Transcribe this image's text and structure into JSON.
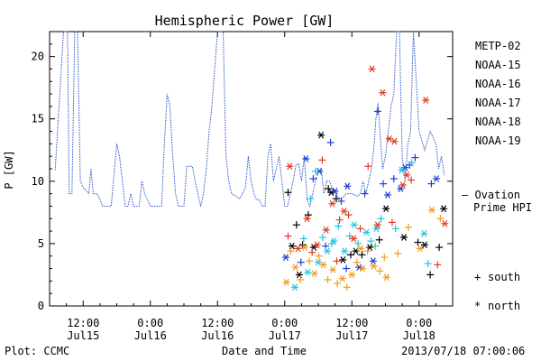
{
  "chart_data": {
    "type": "scatter",
    "title": "Hemispheric Power [GW]",
    "xlabel": "Date and Time",
    "ylabel": "P [GW]",
    "ylim": [
      0,
      22
    ],
    "xlim_hours": [
      -42,
      30
    ],
    "yticks": [
      0,
      5,
      10,
      15,
      20
    ],
    "xticks": [
      {
        "h": -36,
        "time": "12:00",
        "date": "Jul15"
      },
      {
        "h": -24,
        "time": "0:00",
        "date": "Jul16"
      },
      {
        "h": -12,
        "time": "12:00",
        "date": "Jul16"
      },
      {
        "h": 0,
        "time": "0:00",
        "date": "Jul17"
      },
      {
        "h": 12,
        "time": "12:00",
        "date": "Jul17"
      },
      {
        "h": 24,
        "time": "0:00",
        "date": "Jul18"
      }
    ],
    "footer_left": "Plot: CCMC",
    "footer_right": "2013/07/18 07:00:06",
    "legend_items": [
      {
        "name": "METP-02",
        "color": "#000000"
      },
      {
        "name": "NOAA-15",
        "color": "#1f3fd8"
      },
      {
        "name": "NOAA-16",
        "color": "#22c4e0"
      },
      {
        "name": "NOAA-17",
        "color": "#33dd88"
      },
      {
        "name": "NOAA-18",
        "color": "#f39a1c"
      },
      {
        "name": "NOAA-19",
        "color": "#e23b1e"
      }
    ],
    "ovation_label_1": "— Ovation",
    "ovation_label_2": "Prime HPI",
    "ovation_color": "#2a55cc",
    "marker_legend": [
      {
        "symbol": "+",
        "label": "south"
      },
      {
        "symbol": "*",
        "label": "north"
      }
    ],
    "ovation_series": [
      [
        -41,
        10.9
      ],
      [
        -39.5,
        22
      ],
      [
        -38.8,
        22
      ],
      [
        -38.5,
        9
      ],
      [
        -38,
        9
      ],
      [
        -37.5,
        22
      ],
      [
        -37,
        22
      ],
      [
        -36.5,
        10
      ],
      [
        -36,
        9.5
      ],
      [
        -35,
        9
      ],
      [
        -34.6,
        11
      ],
      [
        -34.2,
        9
      ],
      [
        -33.5,
        9
      ],
      [
        -32.5,
        8
      ],
      [
        -31,
        8
      ],
      [
        -30,
        13
      ],
      [
        -29.5,
        12
      ],
      [
        -29,
        10
      ],
      [
        -28.5,
        8
      ],
      [
        -28,
        8
      ],
      [
        -27.5,
        9
      ],
      [
        -27,
        8
      ],
      [
        -26,
        8
      ],
      [
        -25.5,
        10
      ],
      [
        -25,
        9
      ],
      [
        -24.5,
        8.5
      ],
      [
        -24,
        8
      ],
      [
        -22,
        8
      ],
      [
        -21.5,
        13
      ],
      [
        -21,
        17
      ],
      [
        -20.5,
        16
      ],
      [
        -20,
        12
      ],
      [
        -19.5,
        9
      ],
      [
        -19,
        8
      ],
      [
        -18,
        8
      ],
      [
        -17.5,
        11.2
      ],
      [
        -16.5,
        11.2
      ],
      [
        -16,
        10
      ],
      [
        -15,
        8
      ],
      [
        -14.5,
        9
      ],
      [
        -14,
        11
      ],
      [
        -13.5,
        14
      ],
      [
        -13,
        16
      ],
      [
        -12.5,
        19
      ],
      [
        -12,
        22
      ],
      [
        -11.5,
        22
      ],
      [
        -11,
        22
      ],
      [
        -10.5,
        12
      ],
      [
        -10,
        10
      ],
      [
        -9.5,
        9
      ],
      [
        -8,
        8.6
      ],
      [
        -7,
        9.5
      ],
      [
        -6.5,
        12
      ],
      [
        -6,
        10
      ],
      [
        -5.5,
        9
      ],
      [
        -5,
        8.5
      ],
      [
        -4.5,
        8.5
      ],
      [
        -4,
        8
      ],
      [
        -3.5,
        8
      ],
      [
        -3,
        12
      ],
      [
        -2.5,
        13
      ],
      [
        -2,
        10
      ],
      [
        -1,
        12
      ],
      [
        0,
        8
      ],
      [
        0.5,
        8
      ],
      [
        1,
        9
      ],
      [
        1.5,
        10
      ],
      [
        2,
        11.3
      ],
      [
        2.5,
        11.4
      ],
      [
        3,
        10
      ],
      [
        3.5,
        12
      ],
      [
        4,
        8.5
      ],
      [
        4.5,
        8
      ],
      [
        5,
        9
      ],
      [
        5.5,
        10
      ],
      [
        6,
        10.8
      ],
      [
        6.5,
        11
      ],
      [
        7,
        9
      ],
      [
        7.5,
        10
      ],
      [
        8,
        10
      ],
      [
        8.5,
        9.5
      ],
      [
        9,
        9
      ],
      [
        10,
        8.5
      ],
      [
        11,
        9
      ],
      [
        12,
        9
      ],
      [
        13,
        8.8
      ],
      [
        13.5,
        9
      ],
      [
        14,
        10
      ],
      [
        14.5,
        9
      ],
      [
        15,
        10
      ],
      [
        15.5,
        11
      ],
      [
        16,
        13
      ],
      [
        16.3,
        15
      ],
      [
        16.7,
        16.3
      ],
      [
        17,
        14
      ],
      [
        17.5,
        11
      ],
      [
        18,
        12
      ],
      [
        18.5,
        14
      ],
      [
        19,
        16
      ],
      [
        19.5,
        17
      ],
      [
        20,
        22
      ],
      [
        20.5,
        22
      ],
      [
        21,
        12
      ],
      [
        21.5,
        10
      ],
      [
        22,
        13
      ],
      [
        22.5,
        14
      ],
      [
        23,
        22
      ],
      [
        24,
        14
      ],
      [
        25,
        12.5
      ],
      [
        26,
        14
      ],
      [
        27,
        13
      ],
      [
        27.5,
        11
      ],
      [
        28,
        12
      ],
      [
        28.5,
        10.5
      ]
    ],
    "series": [
      {
        "name": "METP-02",
        "color": "#000000",
        "points": [
          {
            "x": 1.3,
            "y": 4.8,
            "m": "*"
          },
          {
            "x": 2.1,
            "y": 6.5,
            "m": "+"
          },
          {
            "x": 2.6,
            "y": 2.5,
            "m": "*"
          },
          {
            "x": 3.2,
            "y": 4.9,
            "m": "+"
          },
          {
            "x": 4.2,
            "y": 7.3,
            "m": "+"
          },
          {
            "x": 5.2,
            "y": 4.7,
            "m": "*"
          },
          {
            "x": 6.5,
            "y": 13.7,
            "m": "*"
          },
          {
            "x": 7.8,
            "y": 9.4,
            "m": "+"
          },
          {
            "x": 8.3,
            "y": 9.1,
            "m": "*"
          },
          {
            "x": 9.2,
            "y": 8.6,
            "m": "+"
          },
          {
            "x": 10.4,
            "y": 3.7,
            "m": "*"
          },
          {
            "x": 11.8,
            "y": 4.1,
            "m": "+"
          },
          {
            "x": 12.7,
            "y": 4.4,
            "m": "*"
          },
          {
            "x": 13.8,
            "y": 4.1,
            "m": "+"
          },
          {
            "x": 15.2,
            "y": 4.7,
            "m": "*"
          },
          {
            "x": 16.9,
            "y": 5.3,
            "m": "+"
          },
          {
            "x": 18.1,
            "y": 7.8,
            "m": "*"
          },
          {
            "x": 21.3,
            "y": 5.5,
            "m": "*"
          },
          {
            "x": 23.8,
            "y": 5.1,
            "m": "+"
          },
          {
            "x": 25.0,
            "y": 4.9,
            "m": "*"
          },
          {
            "x": 26.0,
            "y": 2.5,
            "m": "+"
          },
          {
            "x": 27.6,
            "y": 4.7,
            "m": "+"
          },
          {
            "x": 28.4,
            "y": 7.8,
            "m": "*"
          },
          {
            "x": 0.6,
            "y": 9.1,
            "m": "+"
          }
        ]
      },
      {
        "name": "NOAA-15",
        "color": "#1f3fd8",
        "points": [
          {
            "x": 0.2,
            "y": 3.9,
            "m": "*"
          },
          {
            "x": 2.9,
            "y": 3.5,
            "m": "+"
          },
          {
            "x": 3.8,
            "y": 11.8,
            "m": "*"
          },
          {
            "x": 5.1,
            "y": 10.2,
            "m": "+"
          },
          {
            "x": 6.2,
            "y": 10.8,
            "m": "*"
          },
          {
            "x": 7.3,
            "y": 4.8,
            "m": "+"
          },
          {
            "x": 8.2,
            "y": 13.1,
            "m": "+"
          },
          {
            "x": 9.0,
            "y": 9.2,
            "m": "*"
          },
          {
            "x": 10.1,
            "y": 8.4,
            "m": "+"
          },
          {
            "x": 11.2,
            "y": 9.6,
            "m": "*"
          },
          {
            "x": 13.3,
            "y": 3.1,
            "m": "*"
          },
          {
            "x": 14.3,
            "y": 9.0,
            "m": "+"
          },
          {
            "x": 15.8,
            "y": 3.6,
            "m": "*"
          },
          {
            "x": 16.6,
            "y": 15.6,
            "m": "+"
          },
          {
            "x": 17.6,
            "y": 9.8,
            "m": "+"
          },
          {
            "x": 18.4,
            "y": 8.9,
            "m": "*"
          },
          {
            "x": 19.5,
            "y": 10.2,
            "m": "+"
          },
          {
            "x": 20.7,
            "y": 9.4,
            "m": "*"
          },
          {
            "x": 21.5,
            "y": 11.1,
            "m": "*"
          },
          {
            "x": 22.3,
            "y": 11.3,
            "m": "+"
          },
          {
            "x": 23.3,
            "y": 11.9,
            "m": "+"
          },
          {
            "x": 26.2,
            "y": 9.8,
            "m": "+"
          },
          {
            "x": 27.1,
            "y": 10.2,
            "m": "*"
          },
          {
            "x": 11.0,
            "y": 3.0,
            "m": "+"
          }
        ]
      },
      {
        "name": "NOAA-16",
        "color": "#22c4e0",
        "points": [
          {
            "x": 1.8,
            "y": 1.5,
            "m": "*"
          },
          {
            "x": 3.4,
            "y": 5.4,
            "m": "+"
          },
          {
            "x": 4.1,
            "y": 2.7,
            "m": "*"
          },
          {
            "x": 4.6,
            "y": 8.6,
            "m": "+"
          },
          {
            "x": 5.5,
            "y": 10.8,
            "m": "+"
          },
          {
            "x": 6.0,
            "y": 3.5,
            "m": "*"
          },
          {
            "x": 6.8,
            "y": 5.5,
            "m": "+"
          },
          {
            "x": 7.6,
            "y": 4.4,
            "m": "*"
          },
          {
            "x": 8.8,
            "y": 5.2,
            "m": "*"
          },
          {
            "x": 9.6,
            "y": 6.4,
            "m": "+"
          },
          {
            "x": 10.7,
            "y": 4.4,
            "m": "*"
          },
          {
            "x": 11.6,
            "y": 5.6,
            "m": "+"
          },
          {
            "x": 12.4,
            "y": 6.5,
            "m": "*"
          },
          {
            "x": 13.1,
            "y": 5.0,
            "m": "+"
          },
          {
            "x": 14.6,
            "y": 5.9,
            "m": "*"
          },
          {
            "x": 15.4,
            "y": 5.2,
            "m": "+"
          },
          {
            "x": 16.4,
            "y": 6.2,
            "m": "*"
          },
          {
            "x": 17.2,
            "y": 7.0,
            "m": "+"
          },
          {
            "x": 19.8,
            "y": 6.2,
            "m": "+"
          },
          {
            "x": 20.9,
            "y": 10.9,
            "m": "*"
          },
          {
            "x": 22.7,
            "y": 11.5,
            "m": "+"
          },
          {
            "x": 24.9,
            "y": 5.8,
            "m": "*"
          },
          {
            "x": 25.6,
            "y": 3.4,
            "m": "+"
          },
          {
            "x": 8.4,
            "y": 5.0,
            "m": "+"
          }
        ]
      },
      {
        "name": "NOAA-17",
        "color": "#33dd88",
        "points": [
          {
            "x": 16.2,
            "y": 4.8,
            "m": "+"
          }
        ]
      },
      {
        "name": "NOAA-18",
        "color": "#f39a1c",
        "points": [
          {
            "x": 0.3,
            "y": 1.9,
            "m": "*"
          },
          {
            "x": 1.1,
            "y": 4.4,
            "m": "+"
          },
          {
            "x": 1.9,
            "y": 3.1,
            "m": "*"
          },
          {
            "x": 2.8,
            "y": 2.1,
            "m": "+"
          },
          {
            "x": 3.6,
            "y": 4.7,
            "m": "*"
          },
          {
            "x": 4.4,
            "y": 3.6,
            "m": "+"
          },
          {
            "x": 5.3,
            "y": 2.6,
            "m": "*"
          },
          {
            "x": 6.1,
            "y": 4.0,
            "m": "+"
          },
          {
            "x": 6.9,
            "y": 3.3,
            "m": "*"
          },
          {
            "x": 7.7,
            "y": 2.1,
            "m": "+"
          },
          {
            "x": 8.6,
            "y": 2.9,
            "m": "*"
          },
          {
            "x": 9.4,
            "y": 1.8,
            "m": "+"
          },
          {
            "x": 10.3,
            "y": 2.2,
            "m": "*"
          },
          {
            "x": 11.1,
            "y": 1.5,
            "m": "+"
          },
          {
            "x": 12.0,
            "y": 2.5,
            "m": "*"
          },
          {
            "x": 12.9,
            "y": 3.5,
            "m": "+"
          },
          {
            "x": 13.9,
            "y": 3.0,
            "m": "*"
          },
          {
            "x": 14.8,
            "y": 4.4,
            "m": "+"
          },
          {
            "x": 15.9,
            "y": 3.2,
            "m": "*"
          },
          {
            "x": 17.0,
            "y": 2.8,
            "m": "+"
          },
          {
            "x": 18.2,
            "y": 2.3,
            "m": "*"
          },
          {
            "x": 20.2,
            "y": 4.2,
            "m": "+"
          },
          {
            "x": 22.1,
            "y": 6.3,
            "m": "+"
          },
          {
            "x": 24.2,
            "y": 4.6,
            "m": "*"
          },
          {
            "x": 26.3,
            "y": 7.7,
            "m": "*"
          },
          {
            "x": 27.8,
            "y": 7.0,
            "m": "+"
          },
          {
            "x": 13.6,
            "y": 4.6,
            "m": "*"
          },
          {
            "x": 17.8,
            "y": 3.9,
            "m": "+"
          }
        ]
      },
      {
        "name": "NOAA-19",
        "color": "#e23b1e",
        "points": [
          {
            "x": 0.6,
            "y": 5.6,
            "m": "+"
          },
          {
            "x": 0.9,
            "y": 11.2,
            "m": "*"
          },
          {
            "x": 2.4,
            "y": 4.6,
            "m": "*"
          },
          {
            "x": 4.0,
            "y": 7.0,
            "m": "*"
          },
          {
            "x": 4.9,
            "y": 4.3,
            "m": "+"
          },
          {
            "x": 5.8,
            "y": 4.9,
            "m": "*"
          },
          {
            "x": 6.7,
            "y": 11.7,
            "m": "+"
          },
          {
            "x": 7.4,
            "y": 6.1,
            "m": "*"
          },
          {
            "x": 8.5,
            "y": 8.2,
            "m": "*"
          },
          {
            "x": 9.3,
            "y": 3.6,
            "m": "+"
          },
          {
            "x": 10.6,
            "y": 7.6,
            "m": "*"
          },
          {
            "x": 11.4,
            "y": 7.3,
            "m": "+"
          },
          {
            "x": 12.3,
            "y": 5.4,
            "m": "*"
          },
          {
            "x": 13.5,
            "y": 6.2,
            "m": "+"
          },
          {
            "x": 14.9,
            "y": 11.2,
            "m": "+"
          },
          {
            "x": 15.6,
            "y": 19.0,
            "m": "*"
          },
          {
            "x": 16.6,
            "y": 6.5,
            "m": "*"
          },
          {
            "x": 17.5,
            "y": 17.1,
            "m": "*"
          },
          {
            "x": 18.7,
            "y": 13.4,
            "m": "*"
          },
          {
            "x": 19.6,
            "y": 13.2,
            "m": "*"
          },
          {
            "x": 21.1,
            "y": 9.7,
            "m": "*"
          },
          {
            "x": 21.8,
            "y": 10.5,
            "m": "*"
          },
          {
            "x": 22.6,
            "y": 10.1,
            "m": "+"
          },
          {
            "x": 25.2,
            "y": 16.5,
            "m": "*"
          },
          {
            "x": 27.3,
            "y": 3.3,
            "m": "+"
          },
          {
            "x": 28.6,
            "y": 6.6,
            "m": "*"
          },
          {
            "x": 19.2,
            "y": 6.7,
            "m": "+"
          },
          {
            "x": 9.8,
            "y": 6.9,
            "m": "+"
          }
        ]
      }
    ]
  }
}
